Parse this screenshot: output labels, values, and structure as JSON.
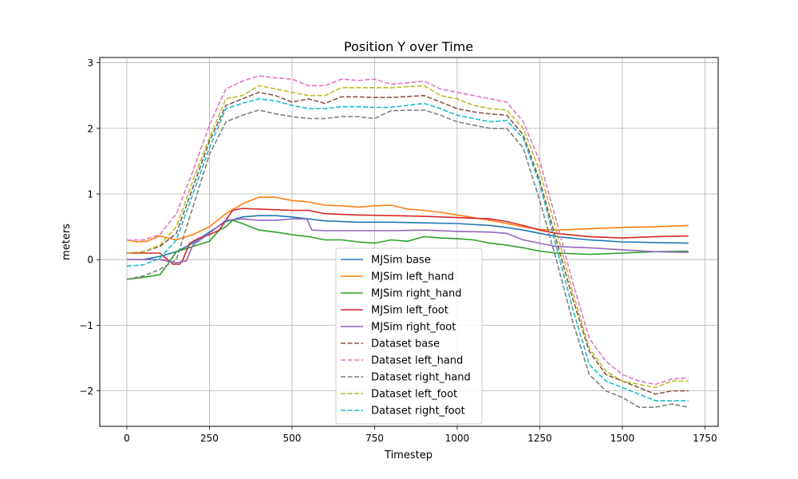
{
  "chart_data": {
    "type": "line",
    "title": "Position Y over Time",
    "xlabel": "Timestep",
    "ylabel": "meters",
    "xlim": [
      -82,
      1790
    ],
    "ylim": [
      -2.54,
      3.08
    ],
    "xticks": [
      0,
      250,
      500,
      750,
      1000,
      1250,
      1500,
      1750
    ],
    "yticks": [
      -2,
      -1,
      0,
      1,
      2,
      3
    ],
    "xtick_labels": [
      "0",
      "250",
      "500",
      "750",
      "1000",
      "1250",
      "1500",
      "1750"
    ],
    "ytick_labels": [
      "−2",
      "−1",
      "0",
      "1",
      "2",
      "3"
    ],
    "grid": true,
    "legend_position": "lower-center",
    "series": [
      {
        "name": "MJSim base",
        "color": "#1f77b4",
        "dash": "solid",
        "x": [
          0,
          50,
          100,
          150,
          200,
          250,
          300,
          350,
          400,
          450,
          500,
          550,
          600,
          700,
          800,
          900,
          1000,
          1100,
          1150,
          1200,
          1250,
          1300,
          1400,
          1500,
          1600,
          1700
        ],
        "y": [
          0.0,
          0.0,
          0.05,
          0.12,
          0.25,
          0.42,
          0.58,
          0.65,
          0.67,
          0.67,
          0.65,
          0.62,
          0.59,
          0.57,
          0.57,
          0.56,
          0.55,
          0.52,
          0.49,
          0.45,
          0.4,
          0.35,
          0.3,
          0.27,
          0.26,
          0.25
        ]
      },
      {
        "name": "MJSim left_hand",
        "color": "#ff7f0e",
        "dash": "solid",
        "x": [
          0,
          30,
          60,
          100,
          150,
          200,
          250,
          300,
          350,
          400,
          450,
          500,
          550,
          600,
          650,
          700,
          750,
          800,
          850,
          900,
          950,
          1000,
          1050,
          1100,
          1150,
          1200,
          1250,
          1300,
          1400,
          1500,
          1600,
          1700
        ],
        "y": [
          0.3,
          0.27,
          0.28,
          0.36,
          0.3,
          0.38,
          0.5,
          0.7,
          0.85,
          0.95,
          0.95,
          0.9,
          0.88,
          0.83,
          0.82,
          0.8,
          0.82,
          0.83,
          0.77,
          0.75,
          0.72,
          0.68,
          0.64,
          0.6,
          0.55,
          0.5,
          0.46,
          0.45,
          0.47,
          0.49,
          0.5,
          0.52
        ]
      },
      {
        "name": "MJSim right_hand",
        "color": "#2ca02c",
        "dash": "solid",
        "x": [
          0,
          50,
          100,
          120,
          150,
          200,
          250,
          280,
          300,
          320,
          350,
          400,
          450,
          500,
          550,
          600,
          650,
          700,
          750,
          800,
          850,
          900,
          950,
          1000,
          1050,
          1100,
          1150,
          1200,
          1250,
          1300,
          1400,
          1500,
          1600,
          1700
        ],
        "y": [
          -0.3,
          -0.27,
          -0.23,
          -0.1,
          0.12,
          0.2,
          0.28,
          0.45,
          0.5,
          0.6,
          0.55,
          0.45,
          0.42,
          0.38,
          0.35,
          0.3,
          0.3,
          0.27,
          0.25,
          0.3,
          0.28,
          0.35,
          0.33,
          0.32,
          0.3,
          0.25,
          0.22,
          0.18,
          0.13,
          0.1,
          0.08,
          0.1,
          0.12,
          0.13
        ]
      },
      {
        "name": "MJSim left_foot",
        "color": "#d62728",
        "dash": "solid",
        "x": [
          0,
          100,
          140,
          160,
          170,
          190,
          220,
          250,
          280,
          300,
          320,
          350,
          400,
          500,
          550,
          600,
          700,
          800,
          900,
          1000,
          1100,
          1150,
          1200,
          1250,
          1300,
          1400,
          1500,
          1600,
          1700
        ],
        "y": [
          0.1,
          0.1,
          -0.07,
          -0.07,
          0.0,
          0.25,
          0.33,
          0.38,
          0.45,
          0.6,
          0.75,
          0.78,
          0.77,
          0.75,
          0.75,
          0.7,
          0.68,
          0.67,
          0.66,
          0.64,
          0.62,
          0.58,
          0.52,
          0.45,
          0.4,
          0.35,
          0.33,
          0.35,
          0.36
        ]
      },
      {
        "name": "MJSim right_foot",
        "color": "#9467bd",
        "dash": "solid",
        "x": [
          0,
          100,
          150,
          180,
          200,
          250,
          300,
          350,
          400,
          450,
          500,
          545,
          560,
          600,
          700,
          800,
          900,
          1000,
          1100,
          1150,
          1200,
          1250,
          1300,
          1400,
          1500,
          1600,
          1700
        ],
        "y": [
          0.0,
          0.0,
          -0.05,
          -0.02,
          0.22,
          0.4,
          0.6,
          0.62,
          0.6,
          0.6,
          0.62,
          0.62,
          0.45,
          0.44,
          0.44,
          0.44,
          0.45,
          0.43,
          0.42,
          0.4,
          0.3,
          0.25,
          0.2,
          0.18,
          0.15,
          0.12,
          0.11
        ]
      },
      {
        "name": "Dataset base",
        "color": "#8c564b",
        "dash": "dashed",
        "x": [
          0,
          50,
          100,
          150,
          200,
          250,
          300,
          350,
          400,
          450,
          500,
          550,
          600,
          650,
          700,
          750,
          800,
          900,
          950,
          1000,
          1050,
          1100,
          1150,
          1200,
          1250,
          1300,
          1350,
          1400,
          1450,
          1500,
          1550,
          1600,
          1650,
          1700
        ],
        "y": [
          0.1,
          0.12,
          0.2,
          0.4,
          1.1,
          1.8,
          2.35,
          2.45,
          2.55,
          2.5,
          2.4,
          2.45,
          2.38,
          2.48,
          2.48,
          2.47,
          2.47,
          2.5,
          2.4,
          2.3,
          2.25,
          2.22,
          2.2,
          1.9,
          1.2,
          0.3,
          -0.6,
          -1.4,
          -1.75,
          -1.85,
          -1.95,
          -2.05,
          -2.0,
          -2.0
        ]
      },
      {
        "name": "Dataset left_hand",
        "color": "#e377c2",
        "dash": "dashed",
        "x": [
          0,
          50,
          100,
          150,
          200,
          250,
          300,
          350,
          400,
          450,
          500,
          550,
          600,
          650,
          700,
          750,
          800,
          900,
          950,
          1000,
          1050,
          1100,
          1150,
          1200,
          1250,
          1300,
          1350,
          1400,
          1450,
          1500,
          1550,
          1600,
          1650,
          1700
        ],
        "y": [
          0.3,
          0.3,
          0.38,
          0.7,
          1.35,
          2.05,
          2.6,
          2.72,
          2.8,
          2.77,
          2.75,
          2.65,
          2.65,
          2.75,
          2.73,
          2.75,
          2.67,
          2.72,
          2.6,
          2.55,
          2.5,
          2.45,
          2.4,
          2.1,
          1.5,
          0.6,
          -0.35,
          -1.2,
          -1.55,
          -1.75,
          -1.85,
          -1.9,
          -1.82,
          -1.8
        ]
      },
      {
        "name": "Dataset right_hand",
        "color": "#7f7f7f",
        "dash": "dashed",
        "x": [
          0,
          50,
          100,
          150,
          200,
          250,
          300,
          350,
          400,
          450,
          500,
          550,
          600,
          650,
          700,
          750,
          800,
          900,
          950,
          1000,
          1050,
          1100,
          1150,
          1200,
          1250,
          1300,
          1350,
          1400,
          1450,
          1500,
          1550,
          1600,
          1650,
          1700
        ],
        "y": [
          -0.3,
          -0.25,
          -0.15,
          0.0,
          0.8,
          1.6,
          2.1,
          2.2,
          2.28,
          2.22,
          2.18,
          2.15,
          2.15,
          2.18,
          2.18,
          2.15,
          2.27,
          2.28,
          2.2,
          2.1,
          2.05,
          2.0,
          2.0,
          1.7,
          0.9,
          0.0,
          -0.95,
          -1.75,
          -2.0,
          -2.1,
          -2.25,
          -2.25,
          -2.2,
          -2.25
        ]
      },
      {
        "name": "Dataset left_foot",
        "color": "#bcbd22",
        "dash": "dashed",
        "x": [
          0,
          50,
          100,
          150,
          200,
          250,
          300,
          350,
          400,
          450,
          500,
          550,
          600,
          650,
          700,
          750,
          800,
          900,
          950,
          1000,
          1050,
          1100,
          1150,
          1200,
          1250,
          1300,
          1350,
          1400,
          1450,
          1500,
          1550,
          1600,
          1650,
          1700
        ],
        "y": [
          0.1,
          0.12,
          0.22,
          0.5,
          1.2,
          1.85,
          2.45,
          2.5,
          2.65,
          2.6,
          2.55,
          2.5,
          2.5,
          2.62,
          2.62,
          2.62,
          2.62,
          2.65,
          2.5,
          2.45,
          2.35,
          2.3,
          2.28,
          2.0,
          1.35,
          0.45,
          -0.5,
          -1.35,
          -1.7,
          -1.85,
          -1.9,
          -1.95,
          -1.85,
          -1.85
        ]
      },
      {
        "name": "Dataset right_foot",
        "color": "#17becf",
        "dash": "dashed",
        "x": [
          0,
          50,
          100,
          150,
          200,
          250,
          300,
          350,
          400,
          450,
          500,
          550,
          600,
          650,
          700,
          750,
          800,
          900,
          950,
          1000,
          1050,
          1100,
          1150,
          1200,
          1250,
          1300,
          1350,
          1400,
          1450,
          1500,
          1550,
          1600,
          1650,
          1700
        ],
        "y": [
          -0.1,
          -0.08,
          0.02,
          0.3,
          1.0,
          1.7,
          2.3,
          2.38,
          2.45,
          2.42,
          2.35,
          2.3,
          2.3,
          2.33,
          2.33,
          2.32,
          2.32,
          2.38,
          2.3,
          2.2,
          2.15,
          2.1,
          2.12,
          1.85,
          1.15,
          0.2,
          -0.75,
          -1.6,
          -1.85,
          -1.95,
          -2.05,
          -2.15,
          -2.15,
          -2.15
        ]
      }
    ]
  }
}
